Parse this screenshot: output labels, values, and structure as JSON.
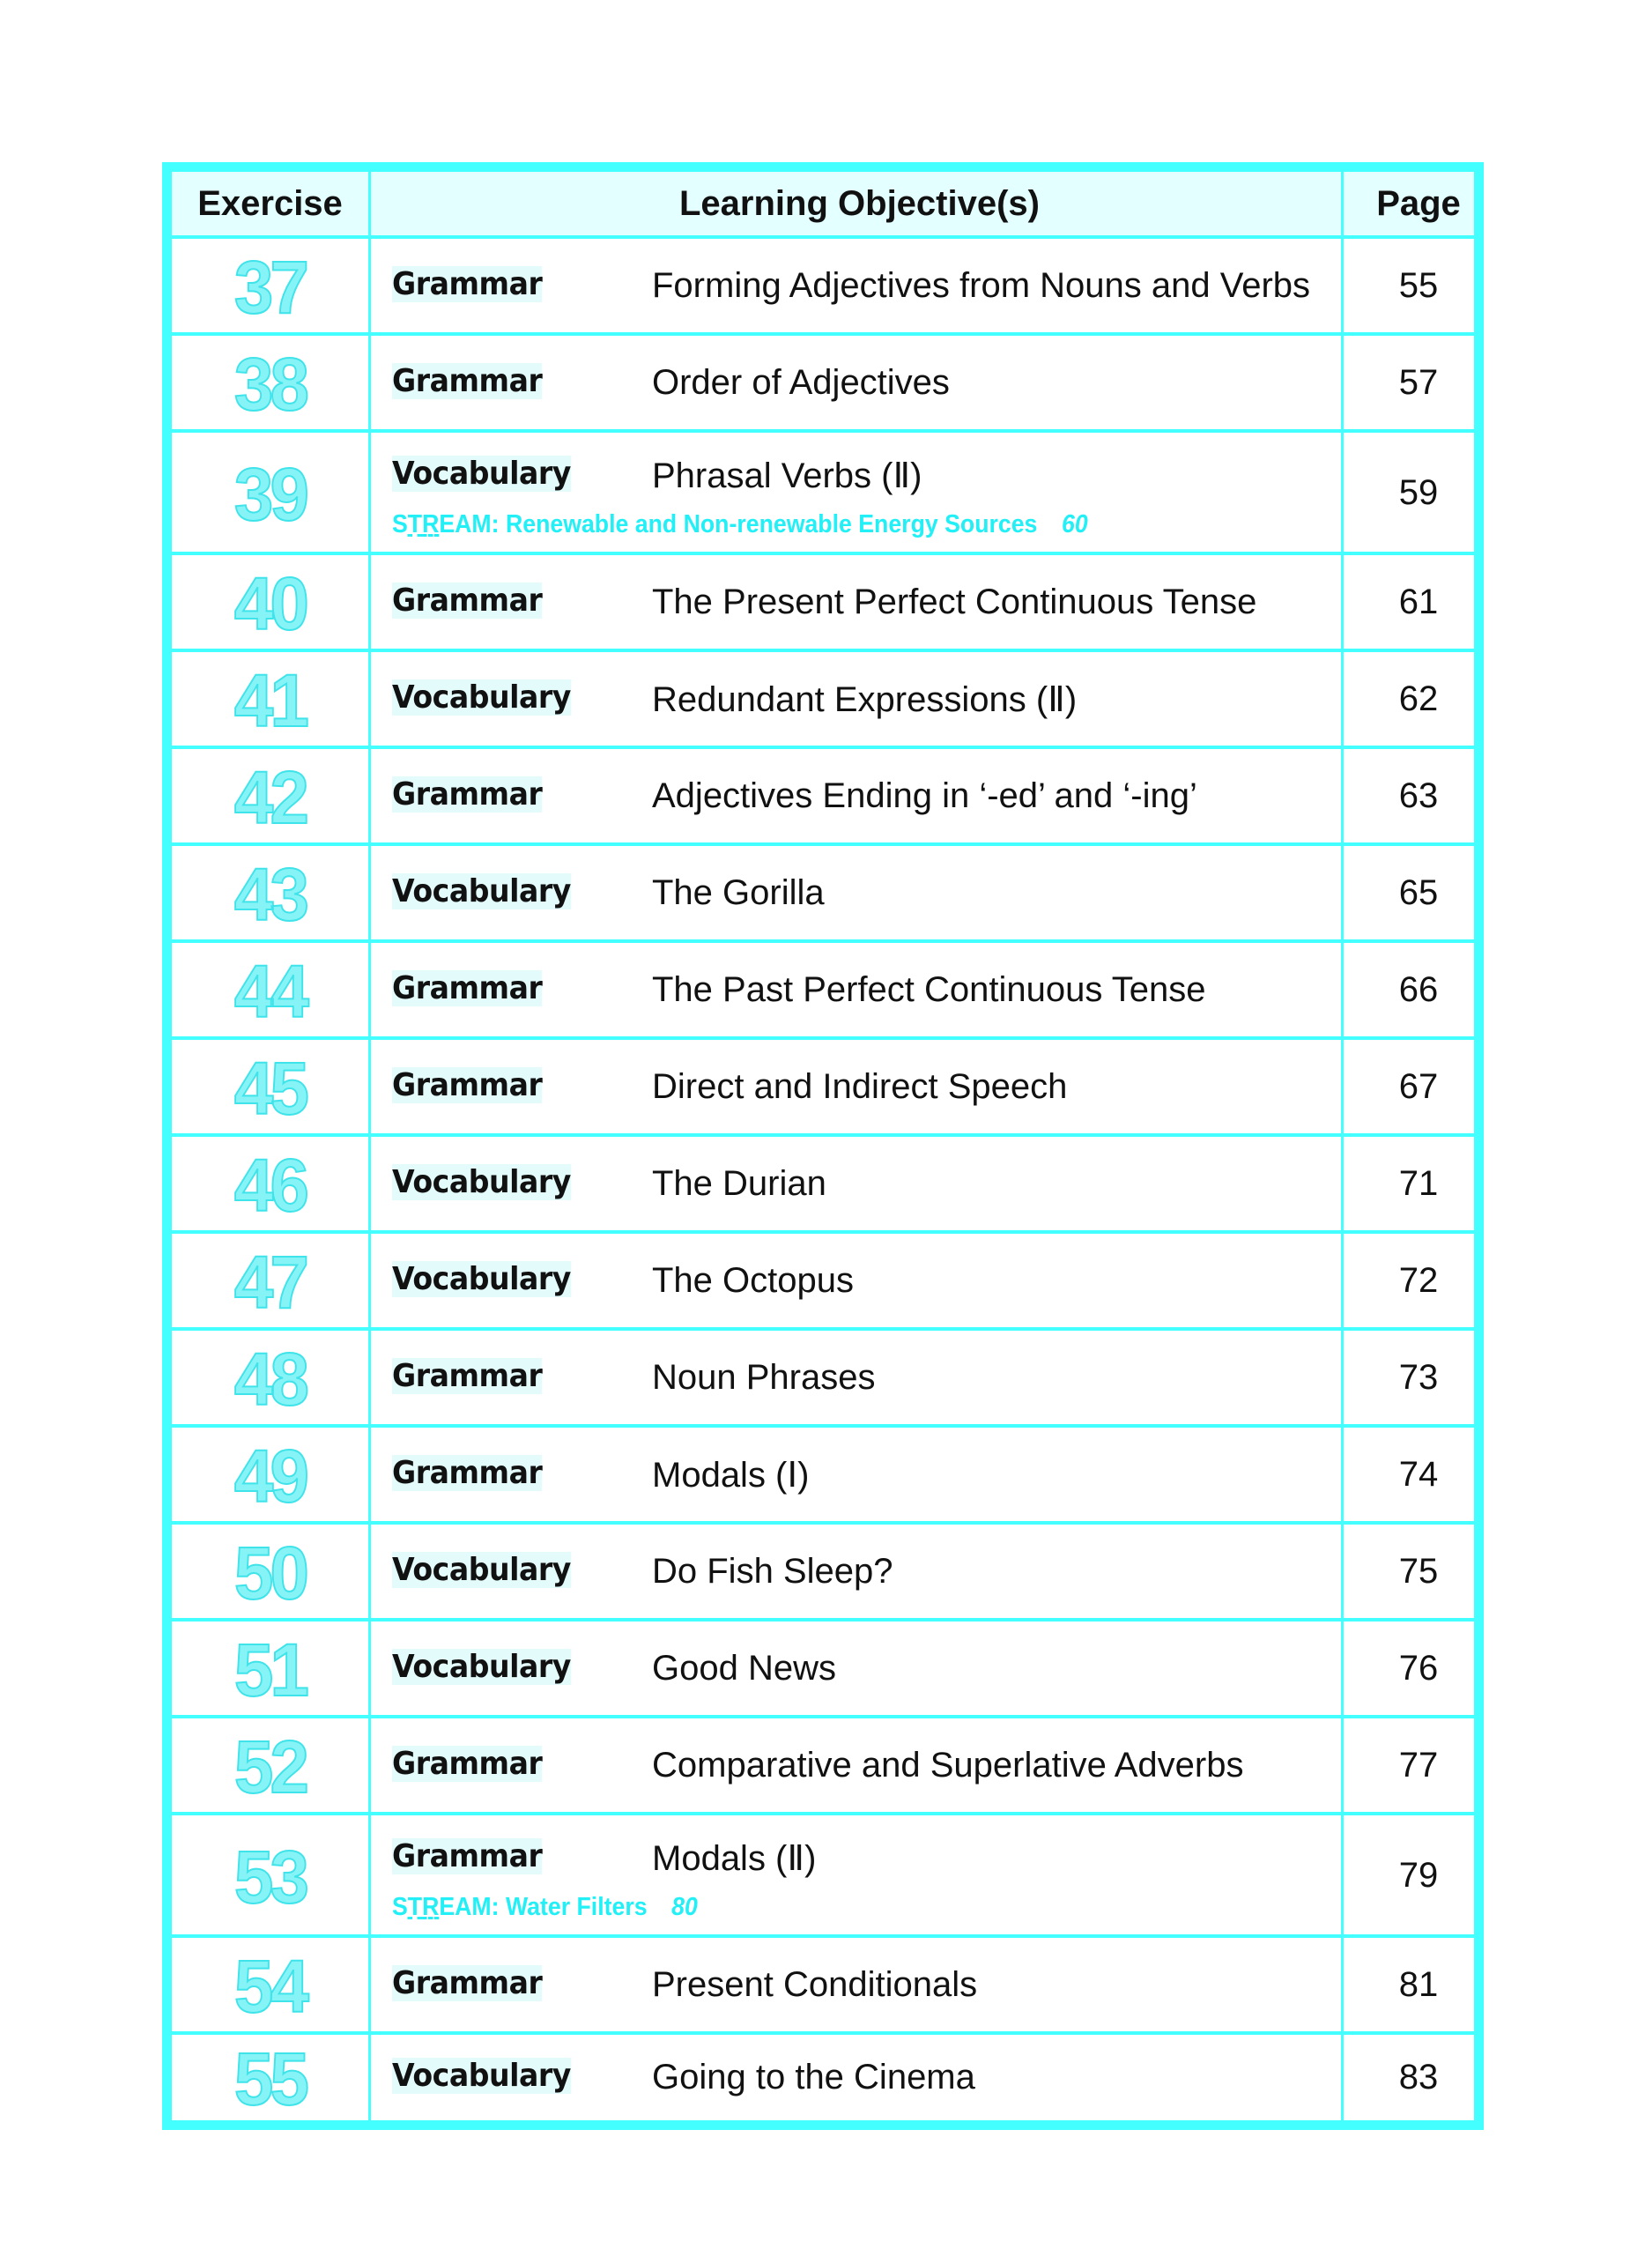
{
  "header": {
    "exercise": "Exercise",
    "objective": "Learning Objective(s)",
    "page": "Page"
  },
  "colors": {
    "border": "#44ffff",
    "header_bg": "#e3ffff",
    "number": "#86f4f6",
    "stream": "#22f0f6"
  },
  "rows": [
    {
      "number": "37",
      "category": "Grammar",
      "objective": "Forming Adjectives from Nouns and Verbs",
      "page": "55"
    },
    {
      "number": "38",
      "category": "Grammar",
      "objective": "Order of Adjectives",
      "page": "57"
    },
    {
      "number": "39",
      "category": "Vocabulary",
      "objective": "Phrasal Verbs (Ⅱ)",
      "page": "59",
      "stream": {
        "s": "S",
        "t": "T",
        "r": "R",
        "rest": "EAM: Renewable and Non-renewable Energy Sources",
        "page": "60"
      }
    },
    {
      "number": "40",
      "category": "Grammar",
      "objective": "The Present Perfect Continuous Tense",
      "page": "61"
    },
    {
      "number": "41",
      "category": "Vocabulary",
      "objective": "Redundant Expressions (Ⅱ)",
      "page": "62"
    },
    {
      "number": "42",
      "category": "Grammar",
      "objective": "Adjectives Ending in ‘-ed’ and ‘-ing’",
      "page": "63"
    },
    {
      "number": "43",
      "category": "Vocabulary",
      "objective": "The Gorilla",
      "page": "65"
    },
    {
      "number": "44",
      "category": "Grammar",
      "objective": "The Past Perfect Continuous Tense",
      "page": "66"
    },
    {
      "number": "45",
      "category": "Grammar",
      "objective": "Direct and Indirect Speech",
      "page": "67"
    },
    {
      "number": "46",
      "category": "Vocabulary",
      "objective": "The Durian",
      "page": "71"
    },
    {
      "number": "47",
      "category": "Vocabulary",
      "objective": "The Octopus",
      "page": "72"
    },
    {
      "number": "48",
      "category": "Grammar",
      "objective": "Noun Phrases",
      "page": "73"
    },
    {
      "number": "49",
      "category": "Grammar",
      "objective": "Modals (Ⅰ)",
      "page": "74"
    },
    {
      "number": "50",
      "category": "Vocabulary",
      "objective": "Do Fish Sleep?",
      "page": "75"
    },
    {
      "number": "51",
      "category": "Vocabulary",
      "objective": "Good News",
      "page": "76"
    },
    {
      "number": "52",
      "category": "Grammar",
      "objective": "Comparative and Superlative Adverbs",
      "page": "77"
    },
    {
      "number": "53",
      "category": "Grammar",
      "objective": "Modals (Ⅱ)",
      "page": "79",
      "stream": {
        "s": "S",
        "t": "T",
        "r": "R",
        "rest": "EAM: Water Filters",
        "page": "80"
      }
    },
    {
      "number": "54",
      "category": "Grammar",
      "objective": "Present Conditionals",
      "page": "81"
    },
    {
      "number": "55",
      "category": "Vocabulary",
      "objective": "Going to the Cinema",
      "page": "83"
    }
  ]
}
